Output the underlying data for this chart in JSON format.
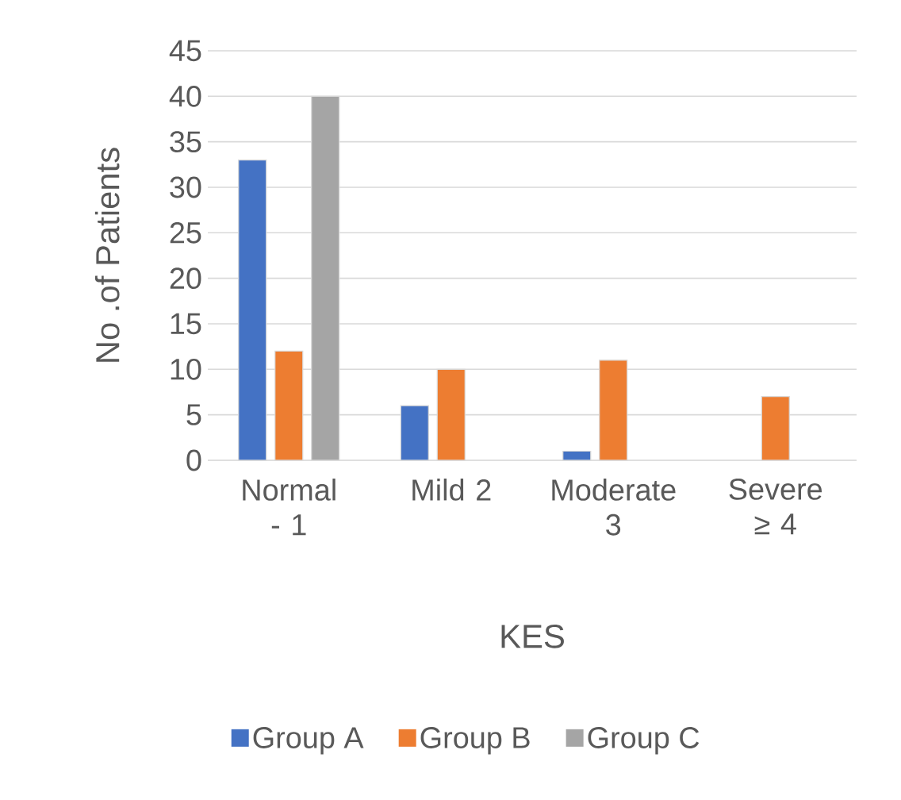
{
  "chart_data": {
    "type": "bar",
    "xlabel": "KES",
    "ylabel": "No .of Patients",
    "categories": [
      "Normal - 1",
      "Mild 2",
      "Moderate 3",
      "Severe ≥ 4"
    ],
    "series": [
      {
        "name": "Group A",
        "color": "#4472c4",
        "values": [
          33,
          6,
          1,
          null
        ]
      },
      {
        "name": "Group B",
        "color": "#ed7d31",
        "values": [
          12,
          10,
          11,
          7
        ]
      },
      {
        "name": "Group C",
        "color": "#a5a5a5",
        "values": [
          40,
          null,
          null,
          null
        ]
      }
    ],
    "ylim": [
      0,
      45
    ],
    "yticks": [
      0,
      5,
      10,
      15,
      20,
      25,
      30,
      35,
      40,
      45
    ],
    "grid": "y",
    "legend": "bottom"
  }
}
